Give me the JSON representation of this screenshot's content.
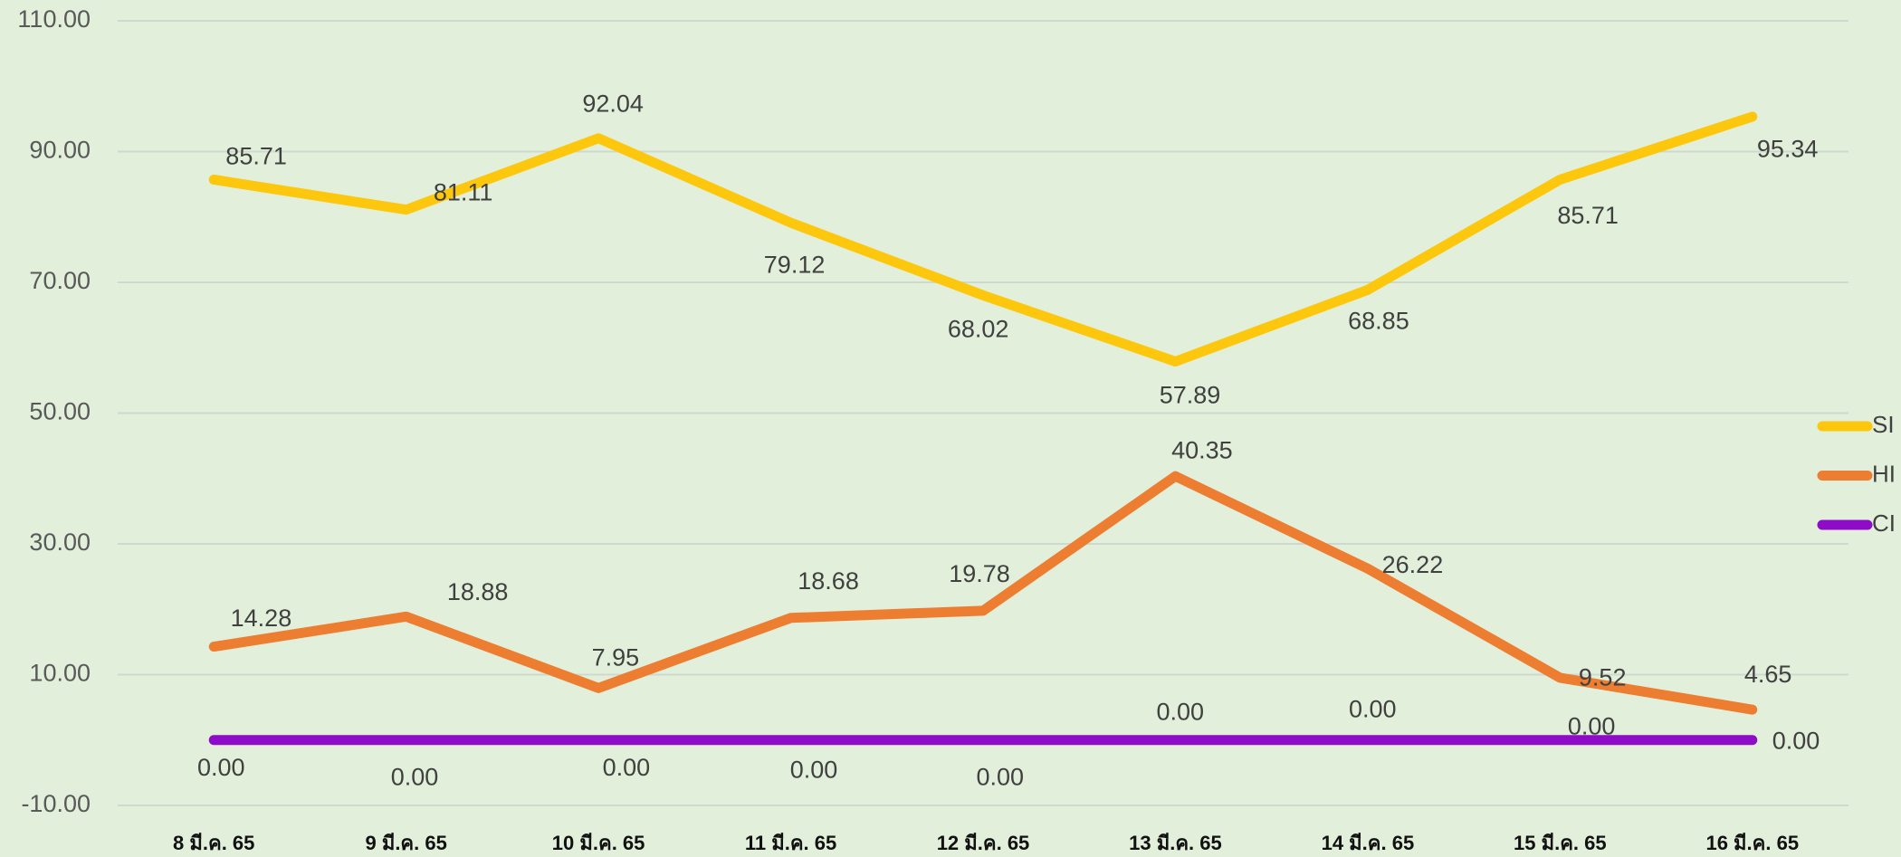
{
  "chart_data": {
    "type": "line",
    "categories": [
      "8 มี.ค. 65",
      "9 มี.ค. 65",
      "10 มี.ค. 65",
      "11 มี.ค. 65",
      "12 มี.ค. 65",
      "13 มี.ค. 65",
      "14 มี.ค. 65",
      "15 มี.ค. 65",
      "16 มี.ค. 65"
    ],
    "series": [
      {
        "name": "SI",
        "color": "#fcc70c",
        "values": [
          85.71,
          81.11,
          92.04,
          79.12,
          68.02,
          57.89,
          68.85,
          85.71,
          95.34
        ]
      },
      {
        "name": "HI",
        "color": "#ed7d31",
        "values": [
          14.28,
          18.88,
          7.95,
          18.68,
          19.78,
          40.35,
          26.22,
          9.52,
          4.65
        ]
      },
      {
        "name": "CI",
        "color": "#8e0cc8",
        "values": [
          0,
          0,
          0,
          0,
          0,
          0,
          0,
          0,
          0
        ],
        "value_labels": [
          "0.00",
          "0.00",
          "0.00",
          "0.00",
          "0.00",
          "0.00",
          "0.00",
          "0.00",
          "0.00"
        ]
      }
    ],
    "ylim": [
      -10,
      110
    ],
    "yticks": [
      {
        "value": -10,
        "label": "-10.00"
      },
      {
        "value": 10,
        "label": "10.00"
      },
      {
        "value": 30,
        "label": "30.00"
      },
      {
        "value": 50,
        "label": "50.00"
      },
      {
        "value": 70,
        "label": "70.00"
      },
      {
        "value": 90,
        "label": "90.00"
      },
      {
        "value": 110,
        "label": "110.00"
      }
    ],
    "grid": true,
    "legend": "right"
  }
}
